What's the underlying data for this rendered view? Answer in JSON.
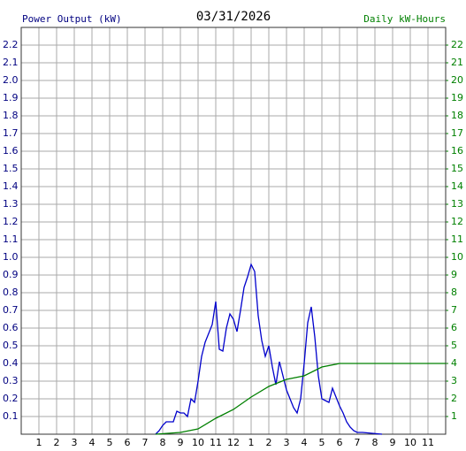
{
  "chart_data": {
    "type": "line",
    "title": "03/31/2026",
    "ylabel": "Power Output (kW)",
    "y2label": "Daily kW-Hours",
    "xlim": [
      0,
      24
    ],
    "xticks": [
      1,
      2,
      3,
      4,
      5,
      6,
      7,
      8,
      9,
      10,
      11,
      12,
      {
        "value": 13,
        "label": "1"
      },
      {
        "value": 14,
        "label": "2"
      },
      {
        "value": 15,
        "label": "3"
      },
      {
        "value": 16,
        "label": "4"
      },
      {
        "value": 17,
        "label": "5"
      },
      {
        "value": 18,
        "label": "6"
      },
      {
        "value": 19,
        "label": "7"
      },
      {
        "value": 20,
        "label": "8"
      },
      {
        "value": 21,
        "label": "9"
      },
      {
        "value": 22,
        "label": "10"
      },
      {
        "value": 23,
        "label": "11"
      }
    ],
    "ylim": [
      0,
      2.3
    ],
    "yticks": [
      0.1,
      0.2,
      0.3,
      0.4,
      0.5,
      0.6,
      0.7,
      0.8,
      0.9,
      {
        "value": 1,
        "label": "1.0"
      },
      1.1,
      1.2,
      1.3,
      1.4,
      1.5,
      1.6,
      1.7,
      1.8,
      1.9,
      {
        "value": 2,
        "label": "2.0"
      },
      2.1,
      2.2
    ],
    "y2lim": [
      0,
      23
    ],
    "y2ticks": [
      1,
      2,
      3,
      4,
      5,
      6,
      7,
      8,
      9,
      10,
      11,
      12,
      13,
      14,
      15,
      16,
      17,
      18,
      19,
      20,
      21,
      22
    ],
    "grid": true,
    "ycolor": "#000080",
    "y2color": "#008000",
    "series": [
      {
        "color": "#0000cc",
        "axis": "y",
        "x": [
          7.6,
          7.8,
          8.0,
          8.2,
          8.6,
          8.8,
          9.0,
          9.2,
          9.4,
          9.6,
          9.8,
          10.0,
          10.2,
          10.4,
          10.6,
          10.8,
          11.0,
          11.2,
          11.4,
          11.6,
          11.8,
          12.0,
          12.2,
          12.4,
          12.6,
          12.8,
          13.0,
          13.2,
          13.4,
          13.6,
          13.8,
          14.0,
          14.2,
          14.4,
          14.6,
          14.8,
          15.0,
          15.2,
          15.4,
          15.6,
          15.8,
          16.0,
          16.2,
          16.4,
          16.6,
          16.8,
          17.0,
          17.2,
          17.4,
          17.6,
          17.8,
          18.0,
          18.2,
          18.4,
          18.6,
          18.8,
          19.0,
          19.3,
          20.4
        ],
        "values": [
          0,
          0.02,
          0.05,
          0.07,
          0.07,
          0.13,
          0.12,
          0.12,
          0.1,
          0.2,
          0.18,
          0.3,
          0.44,
          0.52,
          0.57,
          0.62,
          0.75,
          0.48,
          0.47,
          0.6,
          0.68,
          0.65,
          0.58,
          0.7,
          0.83,
          0.89,
          0.96,
          0.92,
          0.67,
          0.53,
          0.44,
          0.5,
          0.38,
          0.28,
          0.41,
          0.33,
          0.25,
          0.2,
          0.15,
          0.12,
          0.2,
          0.4,
          0.63,
          0.72,
          0.55,
          0.33,
          0.2,
          0.19,
          0.18,
          0.26,
          0.21,
          0.16,
          0.12,
          0.07,
          0.04,
          0.02,
          0.01,
          0.01,
          0
        ]
      },
      {
        "color": "#008000",
        "axis": "y2",
        "x": [
          7.6,
          9.0,
          10.0,
          11.0,
          12.0,
          13.0,
          14.0,
          15.0,
          16.0,
          17.0,
          18.0,
          19.0,
          24.0
        ],
        "values": [
          0,
          0.1,
          0.3,
          0.9,
          1.4,
          2.1,
          2.7,
          3.1,
          3.3,
          3.8,
          4.0,
          4.0,
          4.0
        ]
      }
    ]
  }
}
